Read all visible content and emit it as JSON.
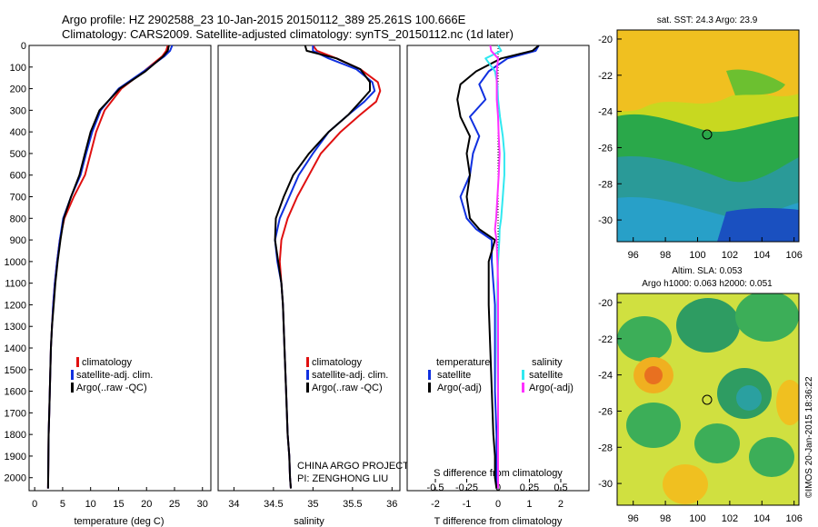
{
  "header": {
    "line1": "Argo profile: HZ 2902588_23 10-Jan-2015 20150112_389 25.261S 100.666E",
    "line2": "Climatology: CARS2009. Satellite-adjusted climatology: synTS_20150112.nc (1d later)"
  },
  "credit": {
    "project": "CHINA ARGO PROJECT",
    "pi": "PI: ZENGHONG LIU",
    "stamp": "©IMOS 20-Jan-2015 18:36:22"
  },
  "colors": {
    "climatology": "#e01010",
    "satellite": "#1030e0",
    "argo": "#000000",
    "satellite_s": "#30e8f0",
    "argo_s": "#ff30ff"
  },
  "depth_ticks": [
    0,
    100,
    200,
    300,
    400,
    500,
    600,
    700,
    800,
    900,
    1000,
    1100,
    1200,
    1300,
    1400,
    1500,
    1600,
    1700,
    1800,
    1900,
    2000
  ],
  "panels": {
    "temp": {
      "xlabel": "temperature (deg C)",
      "xticks": [
        "0",
        "5",
        "10",
        "15",
        "20",
        "25",
        "30"
      ],
      "legend": [
        "climatology",
        "satellite-adj. clim.",
        "Argo(..raw -QC)"
      ]
    },
    "sal": {
      "xlabel": "salinity",
      "xticks": [
        "34",
        "34.5",
        "35",
        "35.5",
        "36"
      ],
      "legend": [
        "climatology",
        "satellite-adj. clim.",
        "Argo(..raw -QC)"
      ]
    },
    "diff": {
      "xlabel": "T difference from climatology",
      "xlabel_top": "S difference from climatology",
      "xticks": [
        "-2",
        "-1",
        "0",
        "1",
        "2"
      ],
      "xticks_top": [
        "-0.5",
        "-0.25",
        "0",
        "0.25",
        "0.5"
      ],
      "legend_temp_title": "temperature",
      "legend_sal_title": "salinity",
      "legend_temp": [
        "satellite",
        "Argo(-adj)"
      ],
      "legend_sal": [
        "satellite",
        "Argo(-adj)"
      ]
    },
    "sst_map": {
      "title": "sat. SST: 24.3 Argo: 23.9",
      "xticks": [
        "96",
        "98",
        "100",
        "102",
        "104",
        "106"
      ],
      "yticks": [
        "-20",
        "-22",
        "-24",
        "-26",
        "-28",
        "-30"
      ]
    },
    "sla_map": {
      "title1": "Altim. SLA: 0.053",
      "title2": "Argo h1000: 0.063 h2000: 0.051",
      "xticks": [
        "96",
        "98",
        "100",
        "102",
        "104",
        "106"
      ],
      "yticks": [
        "-20",
        "-22",
        "-24",
        "-26",
        "-28",
        "-30"
      ]
    }
  },
  "chart_data": [
    {
      "type": "line",
      "xlabel": "temperature (deg C)",
      "ylabel": "",
      "xlim": [
        -1,
        31.5
      ],
      "ylim": [
        2060,
        0
      ],
      "series": [
        {
          "name": "climatology",
          "x": [
            23.8,
            23.5,
            22.8,
            19.5,
            15.5,
            12.5,
            11.0,
            10.0,
            9.0,
            7.0,
            5.3,
            4.5,
            4.0,
            3.6,
            3.3,
            3.1,
            2.9,
            2.8,
            2.7,
            2.6,
            2.5,
            2.4
          ],
          "y": [
            0,
            25,
            50,
            120,
            200,
            300,
            400,
            500,
            600,
            700,
            800,
            900,
            1000,
            1100,
            1200,
            1300,
            1400,
            1500,
            1600,
            1700,
            1800,
            2050
          ]
        },
        {
          "name": "satellite-adj. clim.",
          "x": [
            24.6,
            24.2,
            23.2,
            19.5,
            15.0,
            11.8,
            10.3,
            9.2,
            8.2,
            6.5,
            5.1,
            4.5,
            4.0,
            3.6,
            3.3,
            3.1,
            2.9,
            2.8,
            2.7,
            2.6,
            2.5,
            2.4
          ],
          "y": [
            0,
            25,
            50,
            120,
            200,
            300,
            400,
            500,
            600,
            700,
            800,
            900,
            1000,
            1100,
            1200,
            1300,
            1400,
            1500,
            1600,
            1700,
            1800,
            2050
          ]
        },
        {
          "name": "Argo(..raw -QC)",
          "x": [
            24.0,
            23.8,
            23.0,
            19.8,
            15.2,
            11.6,
            10.0,
            9.0,
            8.0,
            6.5,
            5.2,
            4.6,
            4.1,
            3.7,
            3.4,
            3.1,
            2.9,
            2.8,
            2.7,
            2.6,
            2.5,
            2.4
          ],
          "y": [
            0,
            25,
            50,
            120,
            200,
            300,
            400,
            500,
            600,
            700,
            800,
            900,
            1000,
            1100,
            1200,
            1300,
            1400,
            1500,
            1600,
            1700,
            1800,
            2050
          ]
        }
      ]
    },
    {
      "type": "line",
      "xlabel": "salinity",
      "ylabel": "",
      "xlim": [
        33.8,
        36.1
      ],
      "ylim": [
        2060,
        0
      ],
      "series": [
        {
          "name": "climatology",
          "x": [
            35.0,
            35.05,
            35.3,
            35.6,
            35.82,
            35.85,
            35.8,
            35.6,
            35.35,
            35.1,
            34.95,
            34.8,
            34.68,
            34.6,
            34.58,
            34.6,
            34.62,
            34.64,
            34.66,
            34.68,
            34.7,
            34.71,
            34.72
          ],
          "y": [
            0,
            25,
            60,
            110,
            170,
            210,
            260,
            320,
            400,
            500,
            600,
            700,
            800,
            900,
            1000,
            1100,
            1200,
            1400,
            1600,
            1800,
            1900,
            2000,
            2050
          ]
        },
        {
          "name": "satellite-adj. clim.",
          "x": [
            35.0,
            35.0,
            35.2,
            35.55,
            35.75,
            35.78,
            35.65,
            35.45,
            35.2,
            35.0,
            34.82,
            34.7,
            34.58,
            34.52,
            34.55,
            34.6,
            34.62,
            34.64,
            34.66,
            34.68,
            34.7,
            34.71,
            34.72
          ],
          "y": [
            0,
            25,
            60,
            110,
            170,
            210,
            260,
            320,
            400,
            500,
            600,
            700,
            800,
            900,
            1000,
            1100,
            1200,
            1400,
            1600,
            1800,
            1900,
            2000,
            2050
          ]
        },
        {
          "name": "Argo(..raw -QC)",
          "x": [
            34.9,
            34.92,
            35.3,
            35.6,
            35.72,
            35.72,
            35.6,
            35.45,
            35.2,
            34.95,
            34.75,
            34.63,
            34.53,
            34.52,
            34.56,
            34.6,
            34.62,
            34.64,
            34.66,
            34.68,
            34.7,
            34.71,
            34.72
          ],
          "y": [
            0,
            25,
            60,
            110,
            170,
            210,
            260,
            320,
            400,
            500,
            600,
            700,
            800,
            900,
            1000,
            1100,
            1200,
            1400,
            1600,
            1800,
            1900,
            2000,
            2050
          ]
        }
      ]
    },
    {
      "type": "line",
      "xlabel": "T difference from climatology",
      "xlabel_top": "S difference from climatology",
      "xlim": [
        -2.9,
        2.9
      ],
      "ylim": [
        2060,
        0
      ],
      "reference_line_x": 0,
      "series": [
        {
          "name": "temperature satellite",
          "x": [
            1.3,
            1.2,
            0.3,
            -0.3,
            -0.6,
            -0.4,
            -0.9,
            -0.6,
            -0.8,
            -0.9,
            -1.2,
            -1.0,
            -0.7,
            -0.2,
            -0.2,
            -0.15,
            -0.1,
            -0.1,
            -0.1,
            -0.05,
            -0.05,
            -0.05,
            0.0
          ],
          "y": [
            0,
            25,
            60,
            120,
            180,
            250,
            330,
            420,
            500,
            600,
            700,
            800,
            850,
            900,
            1000,
            1100,
            1200,
            1400,
            1600,
            1800,
            1900,
            2000,
            2050
          ]
        },
        {
          "name": "temperature Argo(-adj)",
          "x": [
            1.3,
            1.1,
            0.1,
            -0.7,
            -1.2,
            -1.3,
            -1.2,
            -0.9,
            -1.0,
            -0.9,
            -1.0,
            -0.9,
            -0.6,
            -0.1,
            -0.3,
            -0.3,
            -0.3,
            -0.25,
            -0.2,
            -0.15,
            -0.1,
            -0.1,
            -0.05
          ],
          "y": [
            0,
            25,
            60,
            120,
            180,
            250,
            330,
            420,
            500,
            600,
            700,
            800,
            850,
            900,
            1000,
            1100,
            1200,
            1400,
            1600,
            1800,
            1900,
            2000,
            2050
          ]
        },
        {
          "name": "salinity satellite",
          "x": [
            0.0,
            0.1,
            -0.4,
            -0.1,
            -0.02,
            0.0,
            0.06,
            0.15,
            0.2,
            0.2,
            0.15,
            0.1,
            0.05,
            0.04,
            0.0,
            -0.02,
            -0.02,
            -0.02,
            0.0,
            0.0,
            0.0,
            0.0,
            0.0
          ],
          "y": [
            0,
            25,
            60,
            120,
            180,
            250,
            330,
            420,
            500,
            600,
            700,
            800,
            850,
            900,
            1000,
            1100,
            1200,
            1400,
            1600,
            1800,
            1900,
            2000,
            2050
          ]
        },
        {
          "name": "salinity Argo(-adj)",
          "x": [
            -0.25,
            -0.22,
            0.0,
            -0.04,
            -0.04,
            -0.04,
            0.0,
            0.02,
            0.05,
            0.02,
            -0.02,
            -0.06,
            -0.1,
            -0.05,
            -0.02,
            0.0,
            0.0,
            0.0,
            0.0,
            0.0,
            0.0,
            0.0,
            0.0
          ],
          "y": [
            0,
            25,
            60,
            120,
            180,
            250,
            330,
            420,
            500,
            600,
            700,
            800,
            850,
            900,
            1000,
            1100,
            1200,
            1400,
            1600,
            1800,
            1900,
            2000,
            2050
          ]
        }
      ]
    },
    {
      "type": "heatmap",
      "title": "sat. SST: 24.3 Argo: 23.9",
      "xlim": [
        95,
        106.3
      ],
      "ylim": [
        -31.2,
        -19.5
      ],
      "marker": {
        "lon": 100.666,
        "lat": -25.261
      }
    },
    {
      "type": "heatmap",
      "title": "Altim. SLA: 0.053",
      "subtitle": "Argo h1000: 0.063 h2000: 0.051",
      "xlim": [
        95,
        106.3
      ],
      "ylim": [
        -31.2,
        -19.5
      ],
      "marker": {
        "lon": 100.666,
        "lat": -25.261
      }
    }
  ]
}
